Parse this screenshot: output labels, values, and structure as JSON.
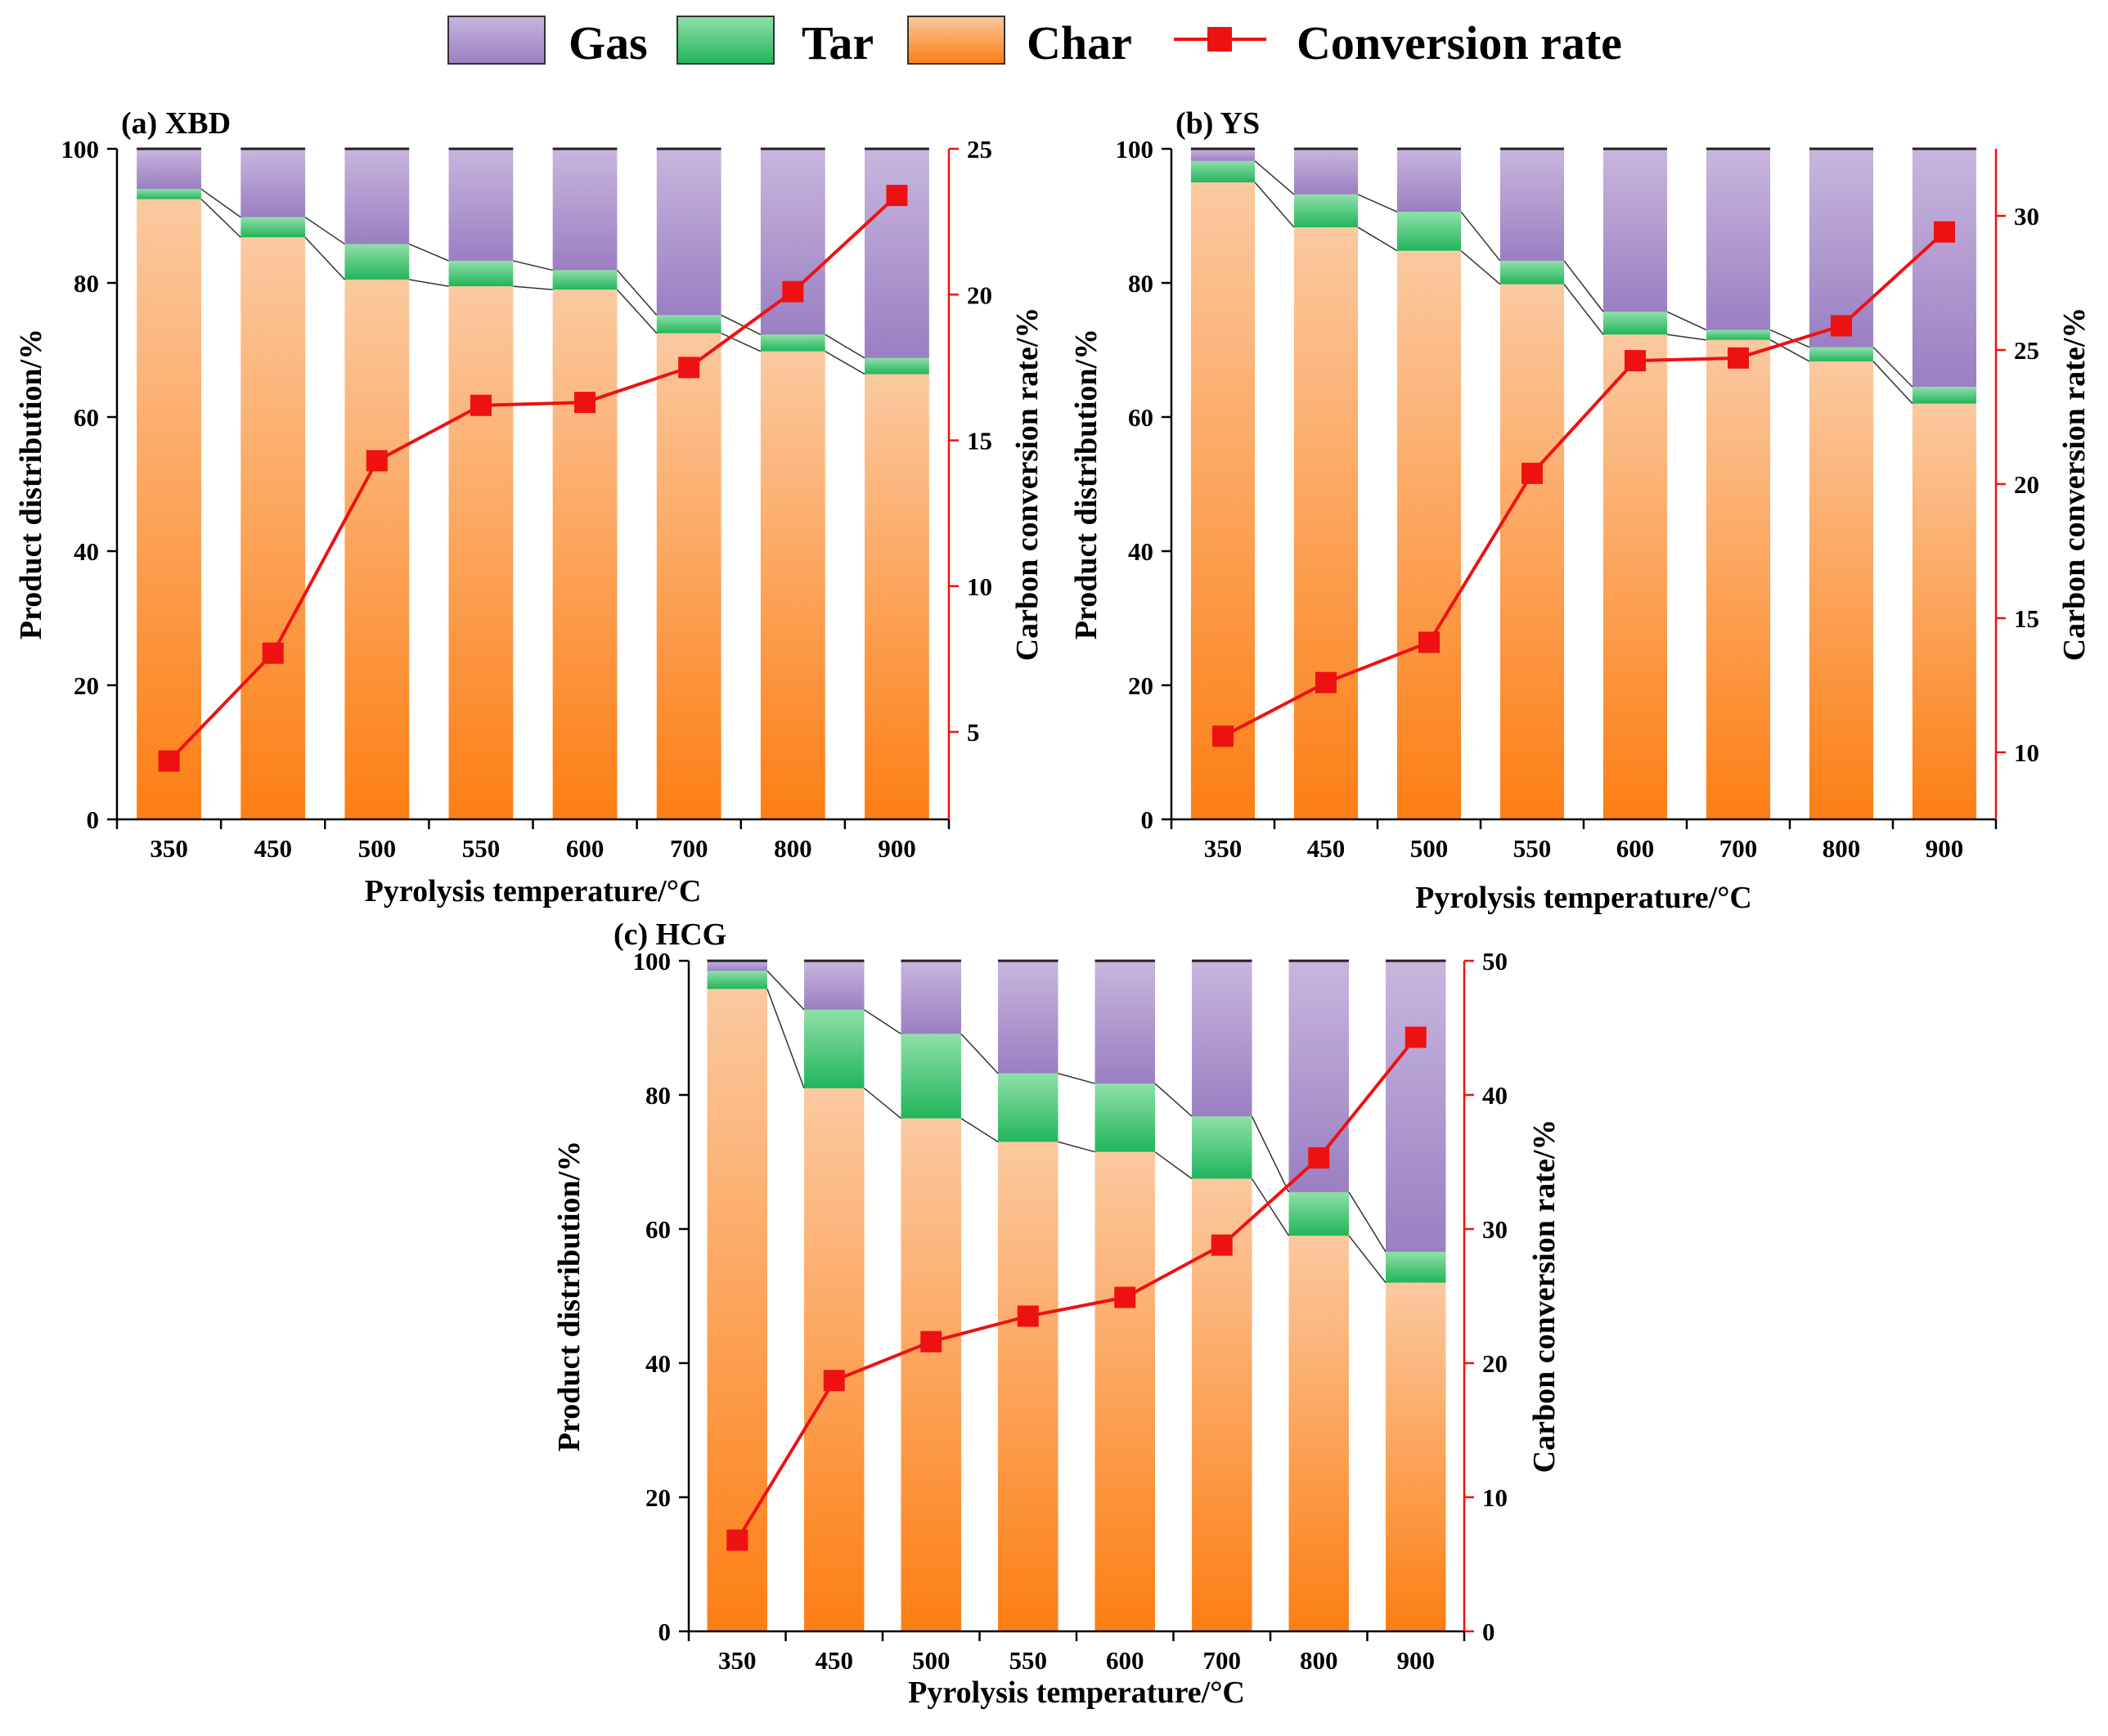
{
  "legend": {
    "items": [
      {
        "name": "gas",
        "label": "Gas"
      },
      {
        "name": "tar",
        "label": "Tar"
      },
      {
        "name": "char",
        "label": "Char"
      },
      {
        "name": "conversion",
        "label": "Conversion rate"
      }
    ]
  },
  "colors": {
    "gas_top": "#c8b6de",
    "gas_bottom": "#9a7fc2",
    "tar_top": "#8fe0a8",
    "tar_bottom": "#22b55c",
    "char_top": "#fbc9a0",
    "char_bottom": "#fd7e13",
    "line": "#ee1111",
    "marker": "#ee1111"
  },
  "chart_data": [
    {
      "id": "a",
      "type": "bar",
      "stacked": true,
      "title": "(a) XBD",
      "xlabel": "Pyrolysis temperature/°C",
      "ylabel": "Product distribution/%",
      "y2label": "Carbon conversion rate/%",
      "categories": [
        "350",
        "450",
        "500",
        "550",
        "600",
        "700",
        "800",
        "900"
      ],
      "series": [
        {
          "name": "Char",
          "values": [
            92.5,
            86.8,
            80.5,
            79.5,
            79.0,
            72.5,
            69.8,
            66.4
          ]
        },
        {
          "name": "Tar",
          "values": [
            1.5,
            3.0,
            5.3,
            3.8,
            2.9,
            2.7,
            2.5,
            2.4
          ]
        },
        {
          "name": "Gas",
          "values": [
            6.0,
            10.2,
            14.2,
            16.7,
            18.1,
            24.8,
            27.7,
            31.2
          ]
        }
      ],
      "line": {
        "name": "Conversion rate",
        "axis": "right",
        "values": [
          4.0,
          7.7,
          14.3,
          16.2,
          16.3,
          17.5,
          20.1,
          23.4
        ]
      },
      "ylim": [
        0,
        100
      ],
      "yticks": [
        0,
        20,
        40,
        60,
        80,
        100
      ],
      "y2lim": [
        2.0,
        25
      ],
      "y2ticks": [
        5,
        10,
        15,
        20,
        25
      ]
    },
    {
      "id": "b",
      "type": "bar",
      "stacked": true,
      "title": "(b) YS",
      "xlabel": "Pyrolysis temperature/°C",
      "ylabel": "Product distribution/%",
      "y2label": "Carbon conversion rate/%",
      "categories": [
        "350",
        "450",
        "500",
        "550",
        "600",
        "700",
        "800",
        "900"
      ],
      "series": [
        {
          "name": "Char",
          "values": [
            95.0,
            88.3,
            84.8,
            79.8,
            72.3,
            71.5,
            68.3,
            62.0
          ]
        },
        {
          "name": "Tar",
          "values": [
            3.2,
            4.9,
            5.8,
            3.5,
            3.4,
            1.5,
            2.1,
            2.5
          ]
        },
        {
          "name": "Gas",
          "values": [
            1.8,
            6.8,
            9.4,
            16.7,
            24.3,
            27.0,
            29.6,
            35.5
          ]
        }
      ],
      "line": {
        "name": "Conversion rate",
        "axis": "right",
        "values": [
          10.6,
          12.6,
          14.1,
          20.4,
          24.6,
          24.7,
          25.9,
          29.4
        ]
      },
      "ylim": [
        0,
        100
      ],
      "yticks": [
        0,
        20,
        40,
        60,
        80,
        100
      ],
      "y2lim": [
        7.5,
        32.5
      ],
      "y2ticks": [
        10,
        15,
        20,
        25,
        30
      ]
    },
    {
      "id": "c",
      "type": "bar",
      "stacked": true,
      "title": "(c) HCG",
      "xlabel": "Pyrolysis temperature/°C",
      "ylabel": "Product distribution/%",
      "y2label": "Carbon conversion rate/%",
      "categories": [
        "350",
        "450",
        "500",
        "550",
        "600",
        "700",
        "800",
        "900"
      ],
      "series": [
        {
          "name": "Char",
          "values": [
            95.8,
            81.0,
            76.5,
            73.0,
            71.5,
            67.5,
            59.0,
            52.0
          ]
        },
        {
          "name": "Tar",
          "values": [
            2.7,
            11.7,
            12.6,
            10.2,
            10.2,
            9.3,
            6.5,
            4.6
          ]
        },
        {
          "name": "Gas",
          "values": [
            1.5,
            7.3,
            10.9,
            16.8,
            18.3,
            23.2,
            34.5,
            43.4
          ]
        }
      ],
      "line": {
        "name": "Conversion rate",
        "axis": "right",
        "values": [
          6.8,
          18.7,
          21.6,
          23.5,
          24.9,
          28.8,
          35.3,
          44.3
        ]
      },
      "ylim": [
        0,
        100
      ],
      "yticks": [
        0,
        20,
        40,
        60,
        80,
        100
      ],
      "y2lim": [
        0,
        50
      ],
      "y2ticks": [
        0,
        10,
        20,
        30,
        40,
        50
      ]
    }
  ]
}
